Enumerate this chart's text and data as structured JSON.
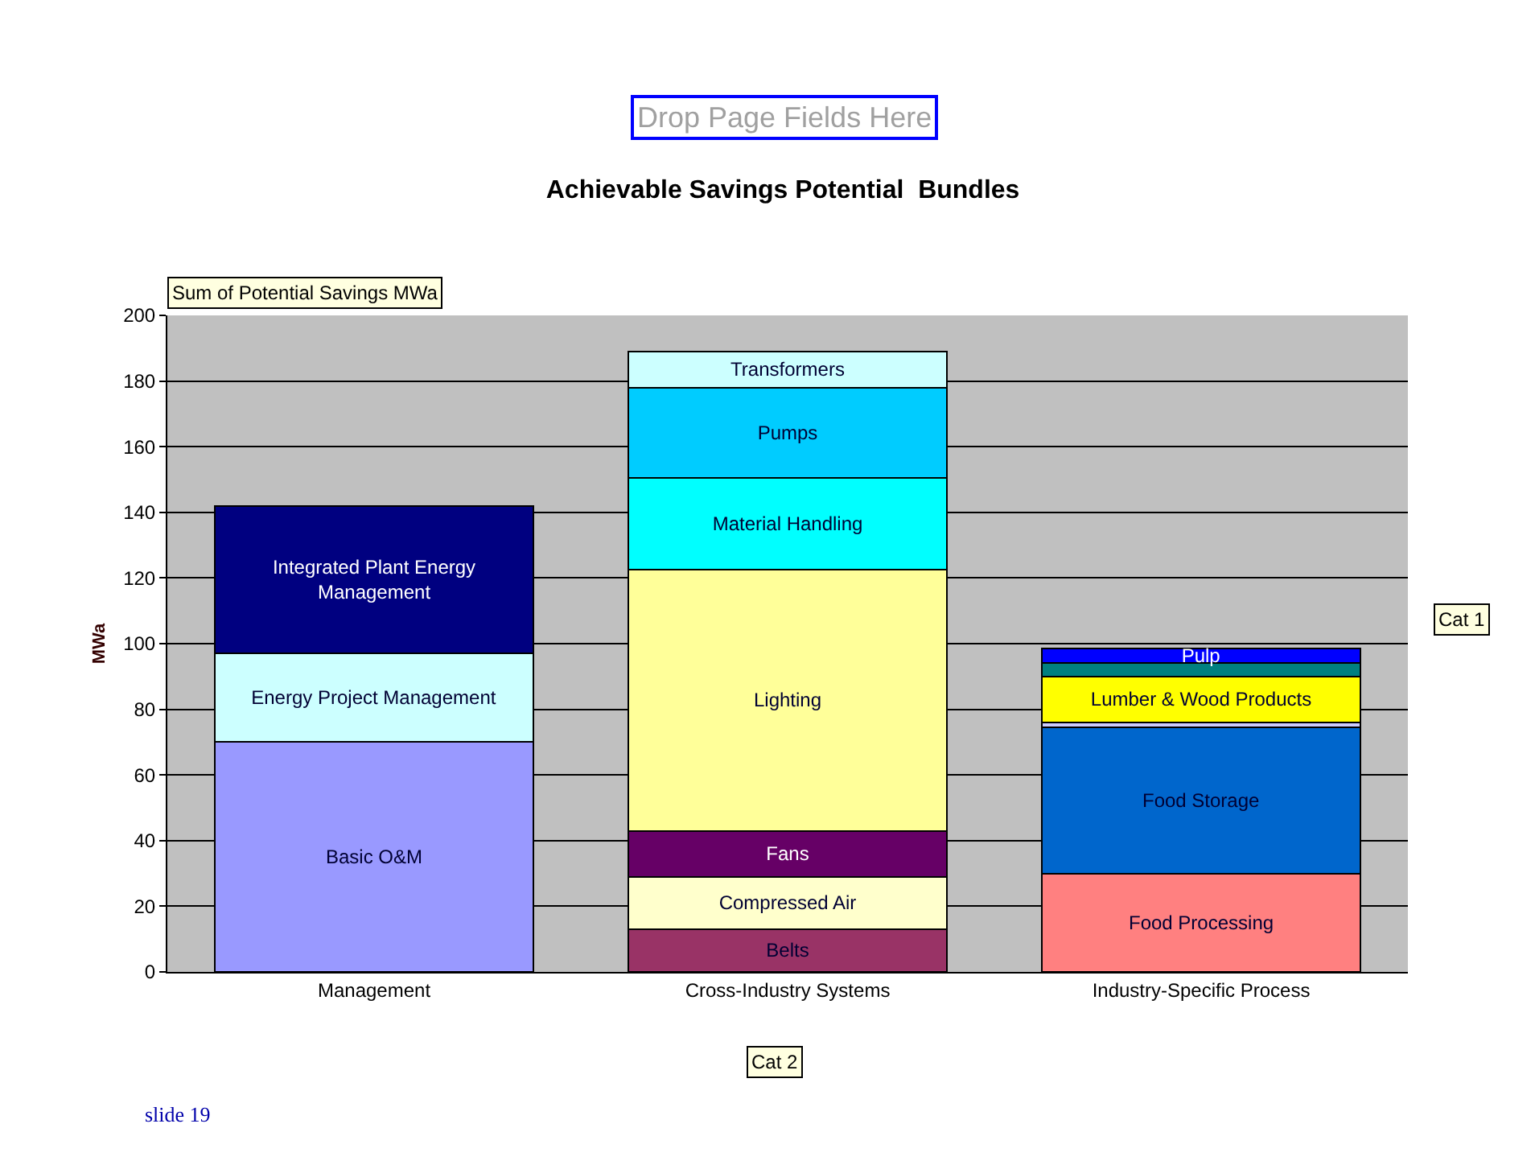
{
  "chart_data": {
    "type": "bar",
    "stacked": true,
    "title": "Achievable Savings Potential  Bundles",
    "ylabel": "MWa",
    "categories": [
      "Management",
      "Cross-Industry Systems",
      "Industry-Specific Process"
    ],
    "series": [
      {
        "name": "Basic O&M",
        "color": "#9999ff",
        "values": [
          70,
          null,
          null
        ]
      },
      {
        "name": "Energy Project Management",
        "color": "#ccffff",
        "values": [
          27,
          null,
          null
        ]
      },
      {
        "name": "Integrated Plant Energy Management",
        "color": "#000080",
        "values": [
          45,
          null,
          null
        ]
      },
      {
        "name": "Belts",
        "color": "#993366",
        "values": [
          null,
          13,
          null
        ]
      },
      {
        "name": "Compressed Air",
        "color": "#ffffcc",
        "values": [
          null,
          16,
          null
        ]
      },
      {
        "name": "Fans",
        "color": "#660066",
        "values": [
          null,
          14,
          null
        ]
      },
      {
        "name": "Lighting",
        "color": "#ffff99",
        "values": [
          null,
          79.5,
          null
        ]
      },
      {
        "name": "Material Handling",
        "color": "#00ffff",
        "values": [
          null,
          28,
          null
        ]
      },
      {
        "name": "Pumps",
        "color": "#00ccff",
        "values": [
          null,
          27.5,
          null
        ]
      },
      {
        "name": "Transformers",
        "color": "#ccffff",
        "values": [
          null,
          11,
          null
        ]
      },
      {
        "name": "Food Processing",
        "color": "#ff8080",
        "values": [
          null,
          null,
          30
        ]
      },
      {
        "name": "Food Storage",
        "color": "#0066cc",
        "values": [
          null,
          null,
          44.5
        ]
      },
      {
        "color": "#ccccff",
        "values": [
          null,
          null,
          1.5
        ]
      },
      {
        "name": "Lumber & Wood Products",
        "color": "#ffff00",
        "values": [
          null,
          null,
          14
        ]
      },
      {
        "color": "#008080",
        "values": [
          null,
          null,
          4
        ]
      },
      {
        "name": "Pulp",
        "color": "#0000ff",
        "values": [
          null,
          null,
          4.5
        ]
      }
    ],
    "ylim": [
      0,
      200
    ],
    "yticks": [
      0,
      20,
      40,
      60,
      80,
      100,
      120,
      140,
      160,
      180,
      200
    ],
    "grid": "y",
    "legend": false,
    "annotations": [
      "Drop Page Fields Here",
      "Sum of Potential Savings MWa",
      "Cat 1",
      "Cat 2",
      "slide 19"
    ]
  }
}
